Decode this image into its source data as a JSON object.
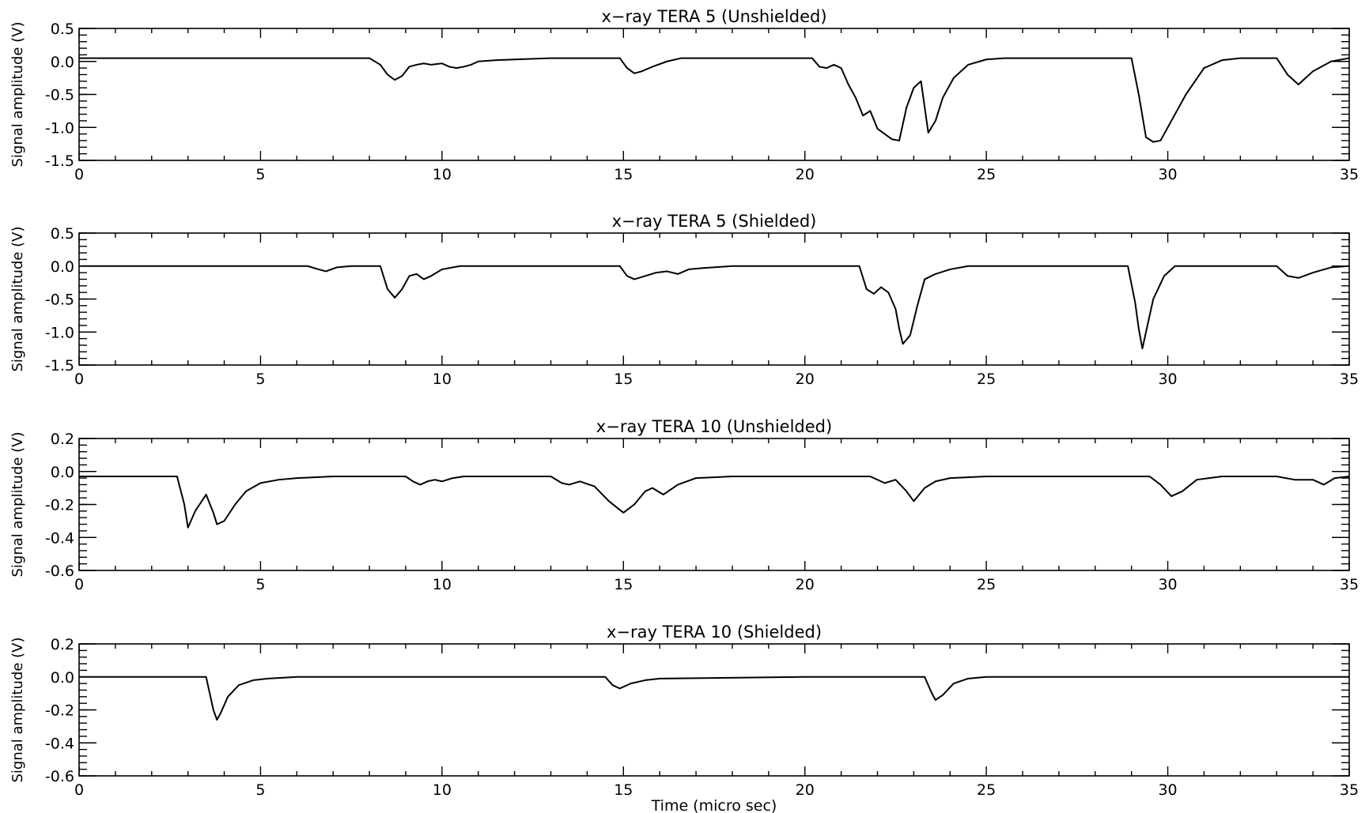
{
  "chart_data": [
    {
      "type": "line",
      "title": "x−ray TERA 5 (Unshielded)",
      "ylabel": "Signal amplitude (V)",
      "xlabel": "",
      "xlim": [
        0,
        35
      ],
      "ylim": [
        -1.5,
        0.5
      ],
      "x_ticks": [
        0,
        5,
        10,
        15,
        20,
        25,
        30,
        35
      ],
      "y_ticks": [
        0.5,
        0.0,
        -0.5,
        -1.0,
        -1.5
      ],
      "y_tick_labels": [
        "0.5",
        "0.0",
        "-0.5",
        "-1.0",
        "-1.5"
      ],
      "y_minor_step": 0.1,
      "x": [
        0,
        8.0,
        8.3,
        8.5,
        8.7,
        8.9,
        9.1,
        9.3,
        9.5,
        9.7,
        10.0,
        10.2,
        10.4,
        10.6,
        10.8,
        11.0,
        11.5,
        12.0,
        13.0,
        14.0,
        14.9,
        15.1,
        15.3,
        15.5,
        15.8,
        16.2,
        16.6,
        17.0,
        18.0,
        19.0,
        20.2,
        20.4,
        20.6,
        20.8,
        21.0,
        21.2,
        21.4,
        21.6,
        21.8,
        22.0,
        22.2,
        22.4,
        22.6,
        22.8,
        23.0,
        23.2,
        23.4,
        23.6,
        23.8,
        24.1,
        24.5,
        25.0,
        25.5,
        26.0,
        27.0,
        28.0,
        29.0,
        29.2,
        29.4,
        29.6,
        29.8,
        30.1,
        30.5,
        31.0,
        31.5,
        32.0,
        33.0,
        33.3,
        33.6,
        34.0,
        34.5,
        35.0
      ],
      "values": [
        0.05,
        0.05,
        -0.05,
        -0.2,
        -0.28,
        -0.22,
        -0.08,
        -0.05,
        -0.03,
        -0.05,
        -0.03,
        -0.08,
        -0.1,
        -0.08,
        -0.05,
        0.0,
        0.02,
        0.03,
        0.05,
        0.05,
        0.05,
        -0.1,
        -0.18,
        -0.15,
        -0.08,
        0.0,
        0.05,
        0.05,
        0.05,
        0.05,
        0.05,
        -0.08,
        -0.1,
        -0.05,
        -0.1,
        -0.35,
        -0.55,
        -0.82,
        -0.75,
        -1.02,
        -1.1,
        -1.18,
        -1.2,
        -0.7,
        -0.4,
        -0.3,
        -1.08,
        -0.9,
        -0.55,
        -0.25,
        -0.05,
        0.03,
        0.05,
        0.05,
        0.05,
        0.05,
        0.05,
        -0.5,
        -1.15,
        -1.22,
        -1.2,
        -0.9,
        -0.5,
        -0.1,
        0.02,
        0.05,
        0.05,
        -0.2,
        -0.35,
        -0.15,
        0.0,
        0.05
      ]
    },
    {
      "type": "line",
      "title": "x−ray TERA 5 (Shielded)",
      "ylabel": "Signal amplitude (V)",
      "xlabel": "",
      "xlim": [
        0,
        35
      ],
      "ylim": [
        -1.5,
        0.5
      ],
      "x_ticks": [
        0,
        5,
        10,
        15,
        20,
        25,
        30,
        35
      ],
      "y_ticks": [
        0.5,
        0.0,
        -0.5,
        -1.0,
        -1.5
      ],
      "y_tick_labels": [
        "0.5",
        "0.0",
        "-0.5",
        "-1.0",
        "-1.5"
      ],
      "y_minor_step": 0.1,
      "x": [
        0,
        6.3,
        6.6,
        6.8,
        7.1,
        7.5,
        8.0,
        8.3,
        8.5,
        8.7,
        8.9,
        9.1,
        9.3,
        9.5,
        9.7,
        10.0,
        10.5,
        11.0,
        13.0,
        14.9,
        15.1,
        15.3,
        15.6,
        15.9,
        16.2,
        16.5,
        16.8,
        17.2,
        18.0,
        20.0,
        21.5,
        21.7,
        21.9,
        22.1,
        22.3,
        22.5,
        22.6,
        22.7,
        22.9,
        23.1,
        23.3,
        23.6,
        24.0,
        24.5,
        25.0,
        26.0,
        27.0,
        28.9,
        29.1,
        29.2,
        29.3,
        29.4,
        29.6,
        29.9,
        30.2,
        30.6,
        31.0,
        32.0,
        33.0,
        33.3,
        33.6,
        34.0,
        34.5,
        35.0
      ],
      "values": [
        0.0,
        0.0,
        -0.05,
        -0.08,
        -0.02,
        0.0,
        0.0,
        0.0,
        -0.35,
        -0.48,
        -0.35,
        -0.15,
        -0.12,
        -0.2,
        -0.15,
        -0.05,
        0.0,
        0.0,
        0.0,
        0.0,
        -0.15,
        -0.2,
        -0.15,
        -0.1,
        -0.08,
        -0.12,
        -0.05,
        -0.03,
        0.0,
        0.0,
        0.0,
        -0.35,
        -0.42,
        -0.32,
        -0.4,
        -0.65,
        -0.95,
        -1.18,
        -1.05,
        -0.6,
        -0.2,
        -0.12,
        -0.05,
        0.0,
        0.0,
        0.0,
        0.0,
        0.0,
        -0.55,
        -0.95,
        -1.25,
        -1.0,
        -0.5,
        -0.15,
        0.0,
        0.0,
        0.0,
        0.0,
        0.0,
        -0.15,
        -0.18,
        -0.1,
        -0.02,
        0.0
      ]
    },
    {
      "type": "line",
      "title": "x−ray TERA 10 (Unshielded)",
      "ylabel": "Signal amplitude (V)",
      "xlabel": "",
      "xlim": [
        0,
        35
      ],
      "ylim": [
        -0.6,
        0.2
      ],
      "x_ticks": [
        0,
        5,
        10,
        15,
        20,
        25,
        30,
        35
      ],
      "y_ticks": [
        0.2,
        0.0,
        -0.2,
        -0.4,
        -0.6
      ],
      "y_tick_labels": [
        "0.2",
        "0.0",
        "-0.2",
        "-0.4",
        "-0.6"
      ],
      "y_minor_step": 0.04,
      "x": [
        0,
        2.7,
        2.9,
        3.0,
        3.2,
        3.5,
        3.7,
        3.8,
        4.0,
        4.3,
        4.6,
        5.0,
        5.5,
        6.0,
        7.0,
        8.0,
        9.0,
        9.2,
        9.4,
        9.6,
        9.8,
        10.0,
        10.3,
        10.6,
        11.0,
        12.0,
        13.0,
        13.3,
        13.5,
        13.8,
        14.2,
        14.6,
        15.0,
        15.3,
        15.6,
        15.8,
        16.1,
        16.5,
        17.0,
        18.0,
        20.0,
        21.8,
        22.2,
        22.5,
        22.8,
        23.0,
        23.3,
        23.6,
        24.0,
        25.0,
        28.0,
        29.5,
        29.8,
        30.1,
        30.4,
        30.8,
        31.5,
        33.0,
        33.5,
        34.0,
        34.3,
        34.6,
        35.0
      ],
      "values": [
        -0.03,
        -0.03,
        -0.2,
        -0.34,
        -0.24,
        -0.14,
        -0.25,
        -0.32,
        -0.3,
        -0.2,
        -0.12,
        -0.07,
        -0.05,
        -0.04,
        -0.03,
        -0.03,
        -0.03,
        -0.06,
        -0.08,
        -0.06,
        -0.05,
        -0.06,
        -0.04,
        -0.03,
        -0.03,
        -0.03,
        -0.03,
        -0.07,
        -0.08,
        -0.06,
        -0.09,
        -0.18,
        -0.25,
        -0.2,
        -0.12,
        -0.1,
        -0.14,
        -0.08,
        -0.04,
        -0.03,
        -0.03,
        -0.03,
        -0.07,
        -0.05,
        -0.12,
        -0.18,
        -0.1,
        -0.06,
        -0.04,
        -0.03,
        -0.03,
        -0.03,
        -0.08,
        -0.15,
        -0.12,
        -0.05,
        -0.03,
        -0.03,
        -0.05,
        -0.05,
        -0.08,
        -0.04,
        -0.03
      ]
    },
    {
      "type": "line",
      "title": "x−ray TERA 10 (Shielded)",
      "ylabel": "Signal amplitude (V)",
      "xlabel": "Time (micro sec)",
      "xlim": [
        0,
        35
      ],
      "ylim": [
        -0.6,
        0.2
      ],
      "x_ticks": [
        0,
        5,
        10,
        15,
        20,
        25,
        30,
        35
      ],
      "y_ticks": [
        0.2,
        0.0,
        -0.2,
        -0.4,
        -0.6
      ],
      "y_tick_labels": [
        "0.2",
        "0.0",
        "-0.2",
        "-0.4",
        "-0.6"
      ],
      "y_minor_step": 0.04,
      "x": [
        0,
        3.5,
        3.6,
        3.7,
        3.8,
        3.9,
        4.1,
        4.4,
        4.8,
        5.2,
        6.0,
        10.0,
        14.5,
        14.7,
        14.9,
        15.2,
        15.6,
        16.0,
        20.0,
        23.3,
        23.5,
        23.6,
        23.8,
        24.1,
        24.5,
        25.0,
        35.0
      ],
      "values": [
        0.0,
        0.0,
        -0.1,
        -0.2,
        -0.26,
        -0.22,
        -0.12,
        -0.05,
        -0.02,
        -0.01,
        0.0,
        0.0,
        0.0,
        -0.05,
        -0.07,
        -0.04,
        -0.02,
        -0.01,
        0.0,
        0.0,
        -0.1,
        -0.14,
        -0.11,
        -0.04,
        -0.01,
        0.0,
        0.0
      ]
    }
  ]
}
